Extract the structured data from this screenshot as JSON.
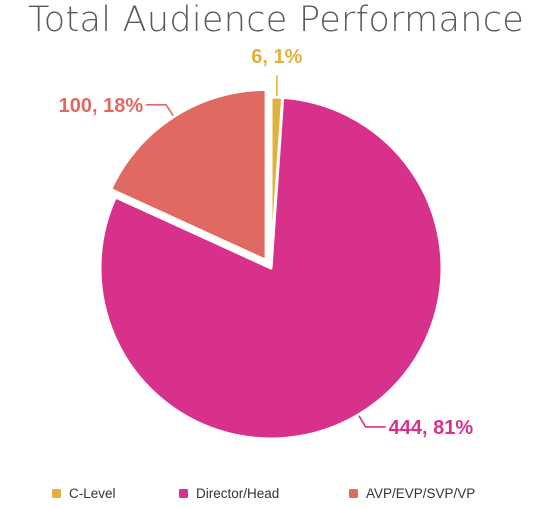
{
  "chart_data": {
    "type": "pie",
    "title": "Total Audience Performance",
    "slices": [
      {
        "name": "C-Level",
        "value": 6,
        "percent": 1,
        "label": "6, 1%",
        "color": "#e2b13c"
      },
      {
        "name": "Director/Head",
        "value": 444,
        "percent": 81,
        "label": "444, 81%",
        "color": "#d8318b"
      },
      {
        "name": "AVP/EVP/SVP/VP",
        "value": 100,
        "percent": 18,
        "label": "100, 18%",
        "color": "#e06a62"
      }
    ],
    "exploded": "AVP/EVP/SVP/VP",
    "legend_position": "bottom"
  }
}
